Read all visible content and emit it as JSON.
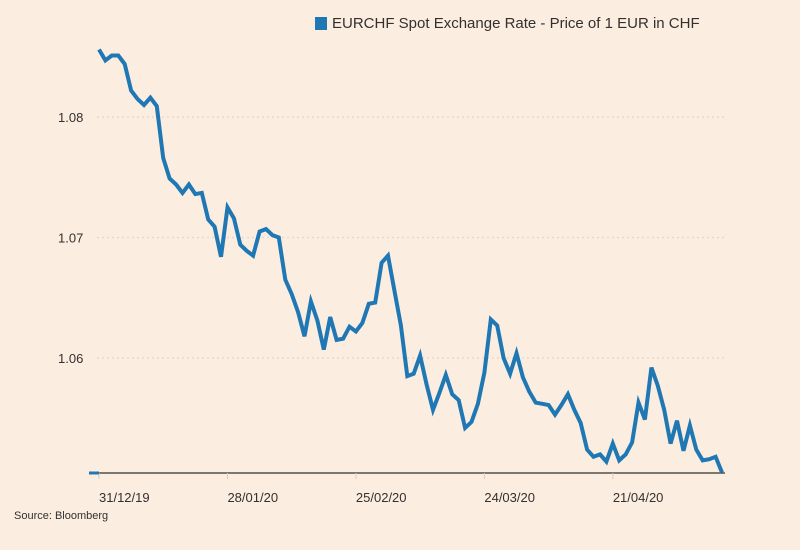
{
  "chart_data": {
    "type": "line",
    "title": "",
    "xlabel": "",
    "ylabel": "",
    "legend_position": "top-right",
    "grid": true,
    "ylim": [
      1.0505,
      1.0865
    ],
    "yticks": [
      1.06,
      1.07,
      1.08
    ],
    "ytick_labels": [
      "1.06",
      "1.07",
      "1.08"
    ],
    "x_tick_labels": [
      "31/12/19",
      "28/01/20",
      "25/02/20",
      "24/03/20",
      "21/04/20"
    ],
    "x_tick_index": [
      0,
      20,
      40,
      60,
      80
    ],
    "series": [
      {
        "name": "EURCHF Spot Exchange Rate - Price of 1 EUR in CHF",
        "color": "#1f78b4",
        "values": [
          1.0856,
          1.0847,
          1.0851,
          1.0851,
          1.0844,
          1.0822,
          1.0815,
          1.081,
          1.0816,
          1.0809,
          1.0766,
          1.0749,
          1.0744,
          1.0737,
          1.0744,
          1.0736,
          1.0737,
          1.0715,
          1.0709,
          1.0684,
          1.0725,
          1.0716,
          1.0694,
          1.0689,
          1.0685,
          1.0705,
          1.0707,
          1.0702,
          1.07,
          1.0665,
          1.0653,
          1.0638,
          1.0618,
          1.0647,
          1.0631,
          1.0607,
          1.0634,
          1.0615,
          1.0616,
          1.0626,
          1.0622,
          1.0629,
          1.0645,
          1.0646,
          1.0679,
          1.0685,
          1.0656,
          1.0627,
          1.0585,
          1.0587,
          1.0602,
          1.0578,
          1.0557,
          1.0571,
          1.0586,
          1.057,
          1.0565,
          1.0542,
          1.0547,
          1.0562,
          1.0588,
          1.0632,
          1.0627,
          1.06,
          1.0587,
          1.0604,
          1.0584,
          1.0572,
          1.0563,
          1.0562,
          1.0561,
          1.0553,
          1.0561,
          1.057,
          1.0557,
          1.0546,
          1.0524,
          1.0518,
          1.052,
          1.0514,
          1.0529,
          1.0515,
          1.052,
          1.053,
          1.0563,
          1.0549,
          1.0592,
          1.0577,
          1.0557,
          1.0529,
          1.0548,
          1.0523,
          1.0544,
          1.0524,
          1.0515,
          1.0516,
          1.0518,
          1.0505
        ]
      }
    ]
  },
  "legend": {
    "label": "EURCHF Spot Exchange Rate - Price of 1 EUR in CHF",
    "color": "#1f78b4"
  },
  "source": "Source: Bloomberg",
  "colors": {
    "background": "#fcede1",
    "axis": "#33302e",
    "grid": "#e3d6cb"
  }
}
